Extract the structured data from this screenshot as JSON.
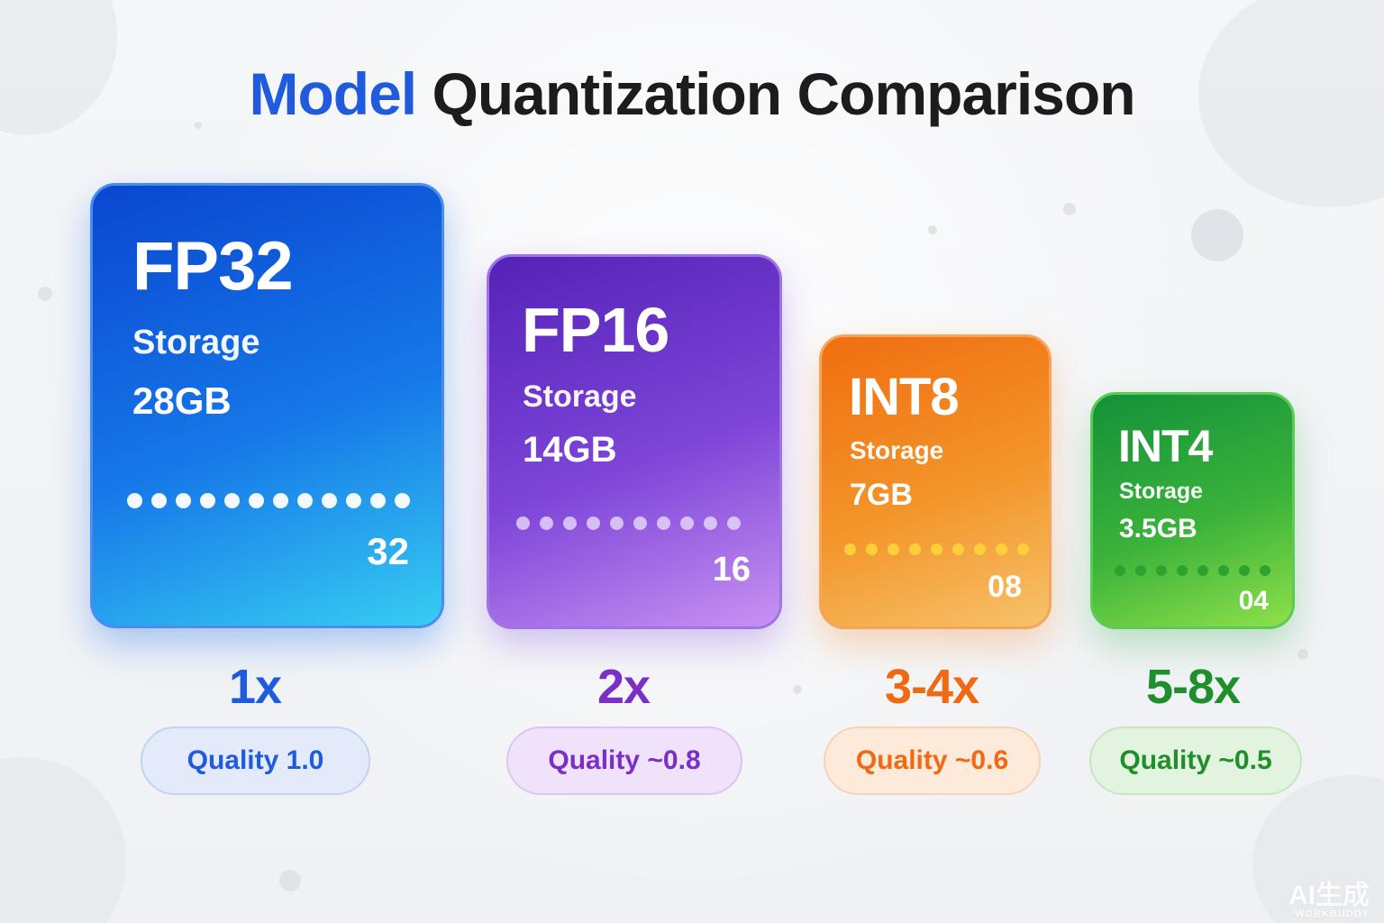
{
  "title": {
    "accent": "Model",
    "rest": "Quantization Comparison"
  },
  "cards": [
    {
      "format": "FP32",
      "storage_label": "Storage",
      "storage_value": "28GB",
      "bits_label": "32",
      "dot_count": 12,
      "speedup": "1x",
      "quality": "Quality 1.0",
      "colors": {
        "accent": "#1f5bdc",
        "pill_bg": "#e3ebfb",
        "pill_border": "#c4d3f5",
        "dot": "#ffffff"
      }
    },
    {
      "format": "FP16",
      "storage_label": "Storage",
      "storage_value": "14GB",
      "bits_label": "16",
      "dot_count": 10,
      "speedup": "2x",
      "quality": "Quality ~0.8",
      "colors": {
        "accent": "#7a2fc7",
        "pill_bg": "#efe2fa",
        "pill_border": "#dcc5f3",
        "dot": "#e9dafb"
      }
    },
    {
      "format": "INT8",
      "storage_label": "Storage",
      "storage_value": "7GB",
      "bits_label": "08",
      "dot_count": 9,
      "speedup": "3-4x",
      "quality": "Quality ~0.6",
      "colors": {
        "accent": "#ef6a12",
        "pill_bg": "#fdeadb",
        "pill_border": "#f8d2b4",
        "dot": "#ffd23a"
      }
    },
    {
      "format": "INT4",
      "storage_label": "Storage",
      "storage_value": "3.5GB",
      "bits_label": "04",
      "dot_count": 8,
      "speedup": "5-8x",
      "quality": "Quality ~0.5",
      "colors": {
        "accent": "#1f8f2c",
        "pill_bg": "#e2f3e0",
        "pill_border": "#c5e6c1",
        "dot": "#2aa02f"
      }
    }
  ],
  "watermark": {
    "line1": "AI生成",
    "line2": "WORKBUDDY"
  }
}
